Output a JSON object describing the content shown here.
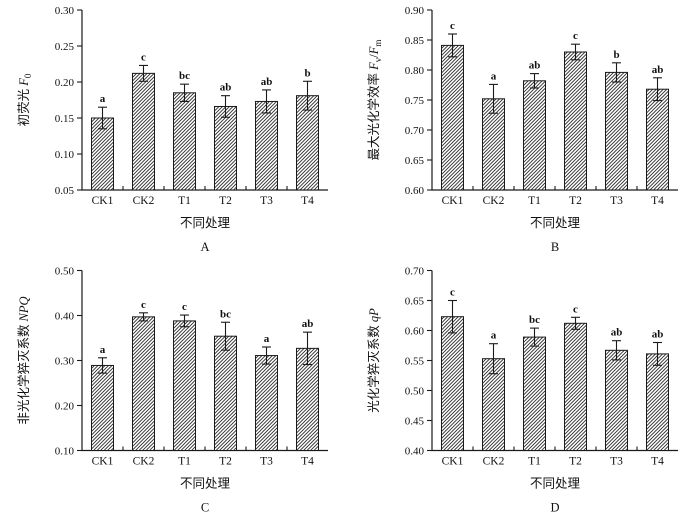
{
  "figure_title": "",
  "colors": {
    "axis": "#1a1a1a",
    "text": "#111111",
    "bar_fill": "#ffffff",
    "hatch_line": "#2b2b2b",
    "background": "#ffffff"
  },
  "chart_data": [
    {
      "type": "bar",
      "panel_label": "A",
      "title": "",
      "xlabel": "不同处理",
      "ylabel_cn": "初荧光",
      "ylabel_sym": [
        {
          "t": "F",
          "i": true
        },
        {
          "t": "0",
          "sub": true
        }
      ],
      "categories": [
        "CK1",
        "CK2",
        "T1",
        "T2",
        "T3",
        "T4"
      ],
      "values": [
        0.15,
        0.212,
        0.185,
        0.166,
        0.173,
        0.181
      ],
      "errors": [
        0.015,
        0.011,
        0.012,
        0.015,
        0.016,
        0.02
      ],
      "sig_letters": [
        "a",
        "c",
        "bc",
        "ab",
        "ab",
        "b"
      ],
      "ylim": [
        0.05,
        0.3
      ],
      "yticks": [
        "0.05",
        "0.10",
        "0.15",
        "0.20",
        "0.25",
        "0.30"
      ],
      "grid": false,
      "bar_style": "diagonal-hatch",
      "legend": null
    },
    {
      "type": "bar",
      "panel_label": "B",
      "title": "",
      "xlabel": "不同处理",
      "ylabel_cn": "最大光化学效率",
      "ylabel_sym": [
        {
          "t": "F",
          "i": true
        },
        {
          "t": "v",
          "sub": true
        },
        {
          "t": "/"
        },
        {
          "t": "F",
          "i": true
        },
        {
          "t": "m",
          "sub": true
        }
      ],
      "categories": [
        "CK1",
        "CK2",
        "T1",
        "T2",
        "T3",
        "T4"
      ],
      "values": [
        0.841,
        0.752,
        0.782,
        0.83,
        0.796,
        0.768
      ],
      "errors": [
        0.019,
        0.024,
        0.012,
        0.013,
        0.016,
        0.019
      ],
      "sig_letters": [
        "c",
        "a",
        "ab",
        "c",
        "b",
        "ab"
      ],
      "ylim": [
        0.6,
        0.9
      ],
      "yticks": [
        "0.60",
        "0.65",
        "0.70",
        "0.75",
        "0.80",
        "0.85",
        "0.90"
      ],
      "grid": false,
      "bar_style": "diagonal-hatch",
      "legend": null
    },
    {
      "type": "bar",
      "panel_label": "C",
      "title": "",
      "xlabel": "不同处理",
      "ylabel_cn": "非光化学猝灭系数",
      "ylabel_sym": [
        {
          "t": "NPQ",
          "i": true
        }
      ],
      "categories": [
        "CK1",
        "CK2",
        "T1",
        "T2",
        "T3",
        "T4"
      ],
      "values": [
        0.289,
        0.397,
        0.388,
        0.354,
        0.311,
        0.327
      ],
      "errors": [
        0.017,
        0.009,
        0.013,
        0.031,
        0.019,
        0.036
      ],
      "sig_letters": [
        "a",
        "c",
        "c",
        "bc",
        "a",
        "ab"
      ],
      "ylim": [
        0.1,
        0.5
      ],
      "yticks": [
        "0.10",
        "0.20",
        "0.30",
        "0.40",
        "0.50"
      ],
      "grid": false,
      "bar_style": "diagonal-hatch",
      "legend": null
    },
    {
      "type": "bar",
      "panel_label": "D",
      "title": "",
      "xlabel": "不同处理",
      "ylabel_cn": "光化学猝灭系数",
      "ylabel_sym": [
        {
          "t": "qP",
          "i": true
        }
      ],
      "categories": [
        "CK1",
        "CK2",
        "T1",
        "T2",
        "T3",
        "T4"
      ],
      "values": [
        0.623,
        0.553,
        0.589,
        0.612,
        0.567,
        0.561
      ],
      "errors": [
        0.027,
        0.025,
        0.015,
        0.01,
        0.016,
        0.019
      ],
      "sig_letters": [
        "c",
        "a",
        "bc",
        "c",
        "ab",
        "ab"
      ],
      "ylim": [
        0.4,
        0.7
      ],
      "yticks": [
        "0.40",
        "0.45",
        "0.50",
        "0.55",
        "0.60",
        "0.65",
        "0.70"
      ],
      "grid": false,
      "bar_style": "diagonal-hatch",
      "legend": null
    }
  ]
}
